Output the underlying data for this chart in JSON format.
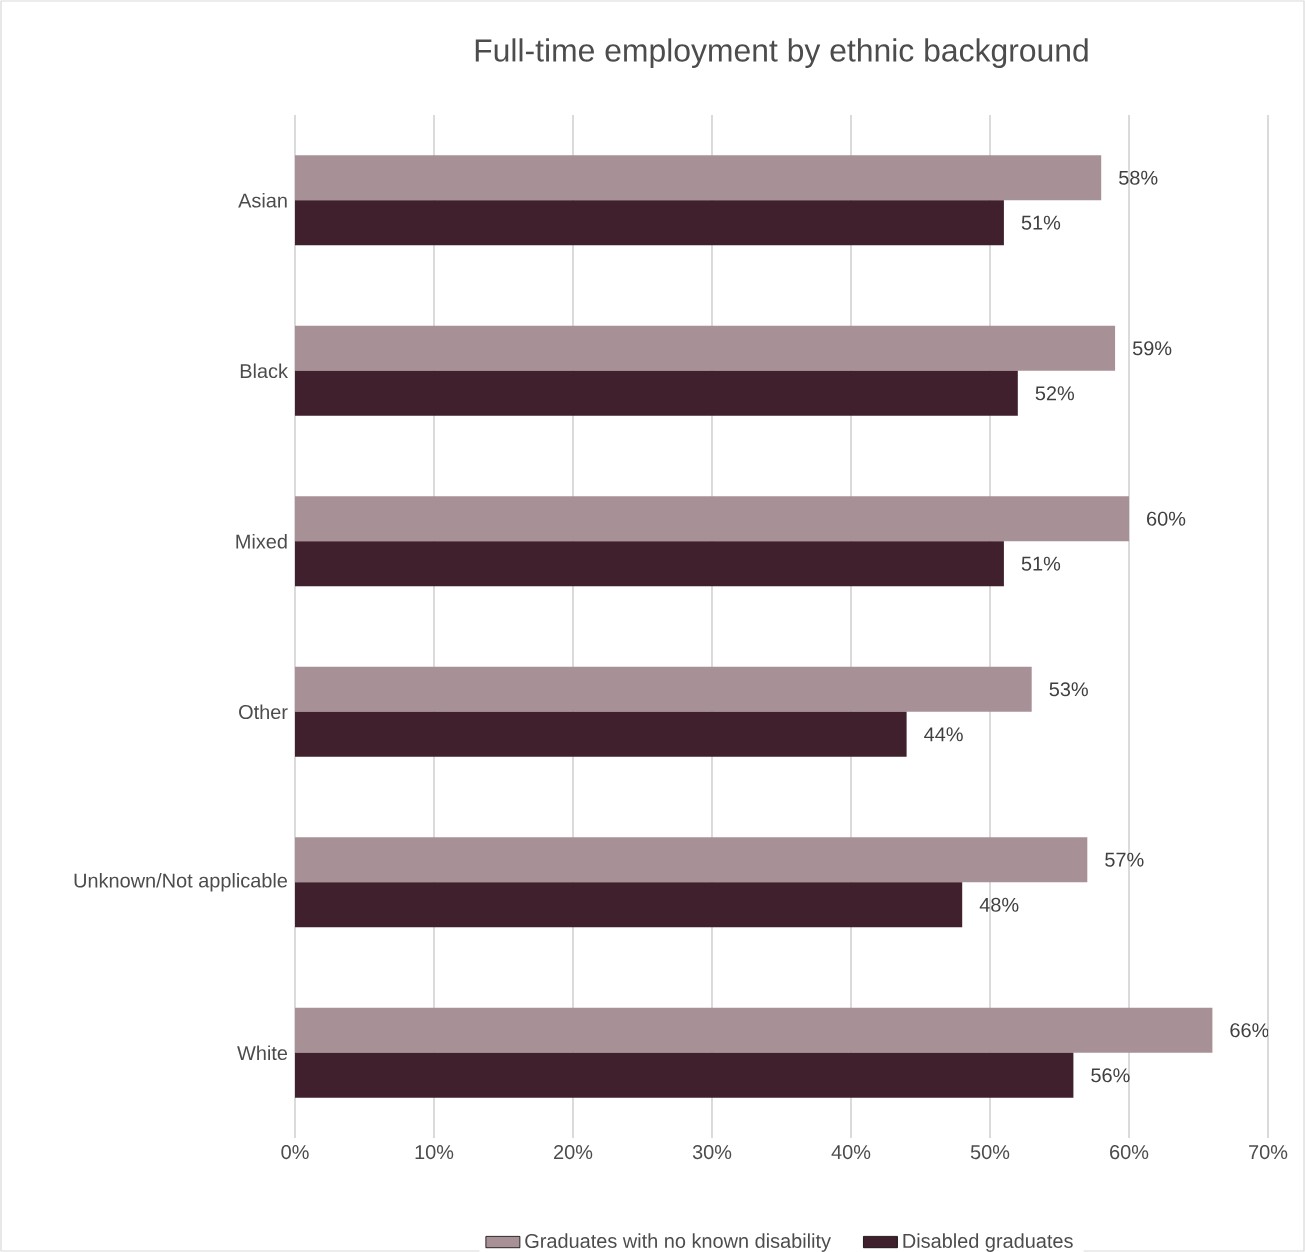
{
  "chart_data": {
    "type": "bar",
    "orientation": "horizontal",
    "title": "Full-time employment by ethnic background",
    "categories": [
      "Asian",
      "Black",
      "Mixed",
      "Other",
      "Unknown/Not applicable",
      "White"
    ],
    "series": [
      {
        "name": "Graduates with no known disability",
        "color": "#a89097",
        "values": [
          58,
          59,
          60,
          53,
          57,
          66
        ],
        "value_labels": [
          "58%",
          "59%",
          "60%",
          "53%",
          "57%",
          "66%"
        ]
      },
      {
        "name": "Disabled graduates",
        "color": "#3f202c",
        "values": [
          51,
          52,
          51,
          44,
          48,
          56
        ],
        "value_labels": [
          "51%",
          "52%",
          "51%",
          "44%",
          "48%",
          "56%"
        ]
      }
    ],
    "xlim": [
      0,
      70
    ],
    "xticks": [
      {
        "value": 0,
        "label": "0%"
      },
      {
        "value": 10,
        "label": "10%"
      },
      {
        "value": 20,
        "label": "20%"
      },
      {
        "value": 30,
        "label": "30%"
      },
      {
        "value": 40,
        "label": "40%"
      },
      {
        "value": 50,
        "label": "50%"
      },
      {
        "value": 60,
        "label": "60%"
      },
      {
        "value": 70,
        "label": "70%"
      }
    ],
    "grid": "x",
    "legend": "bottom"
  }
}
